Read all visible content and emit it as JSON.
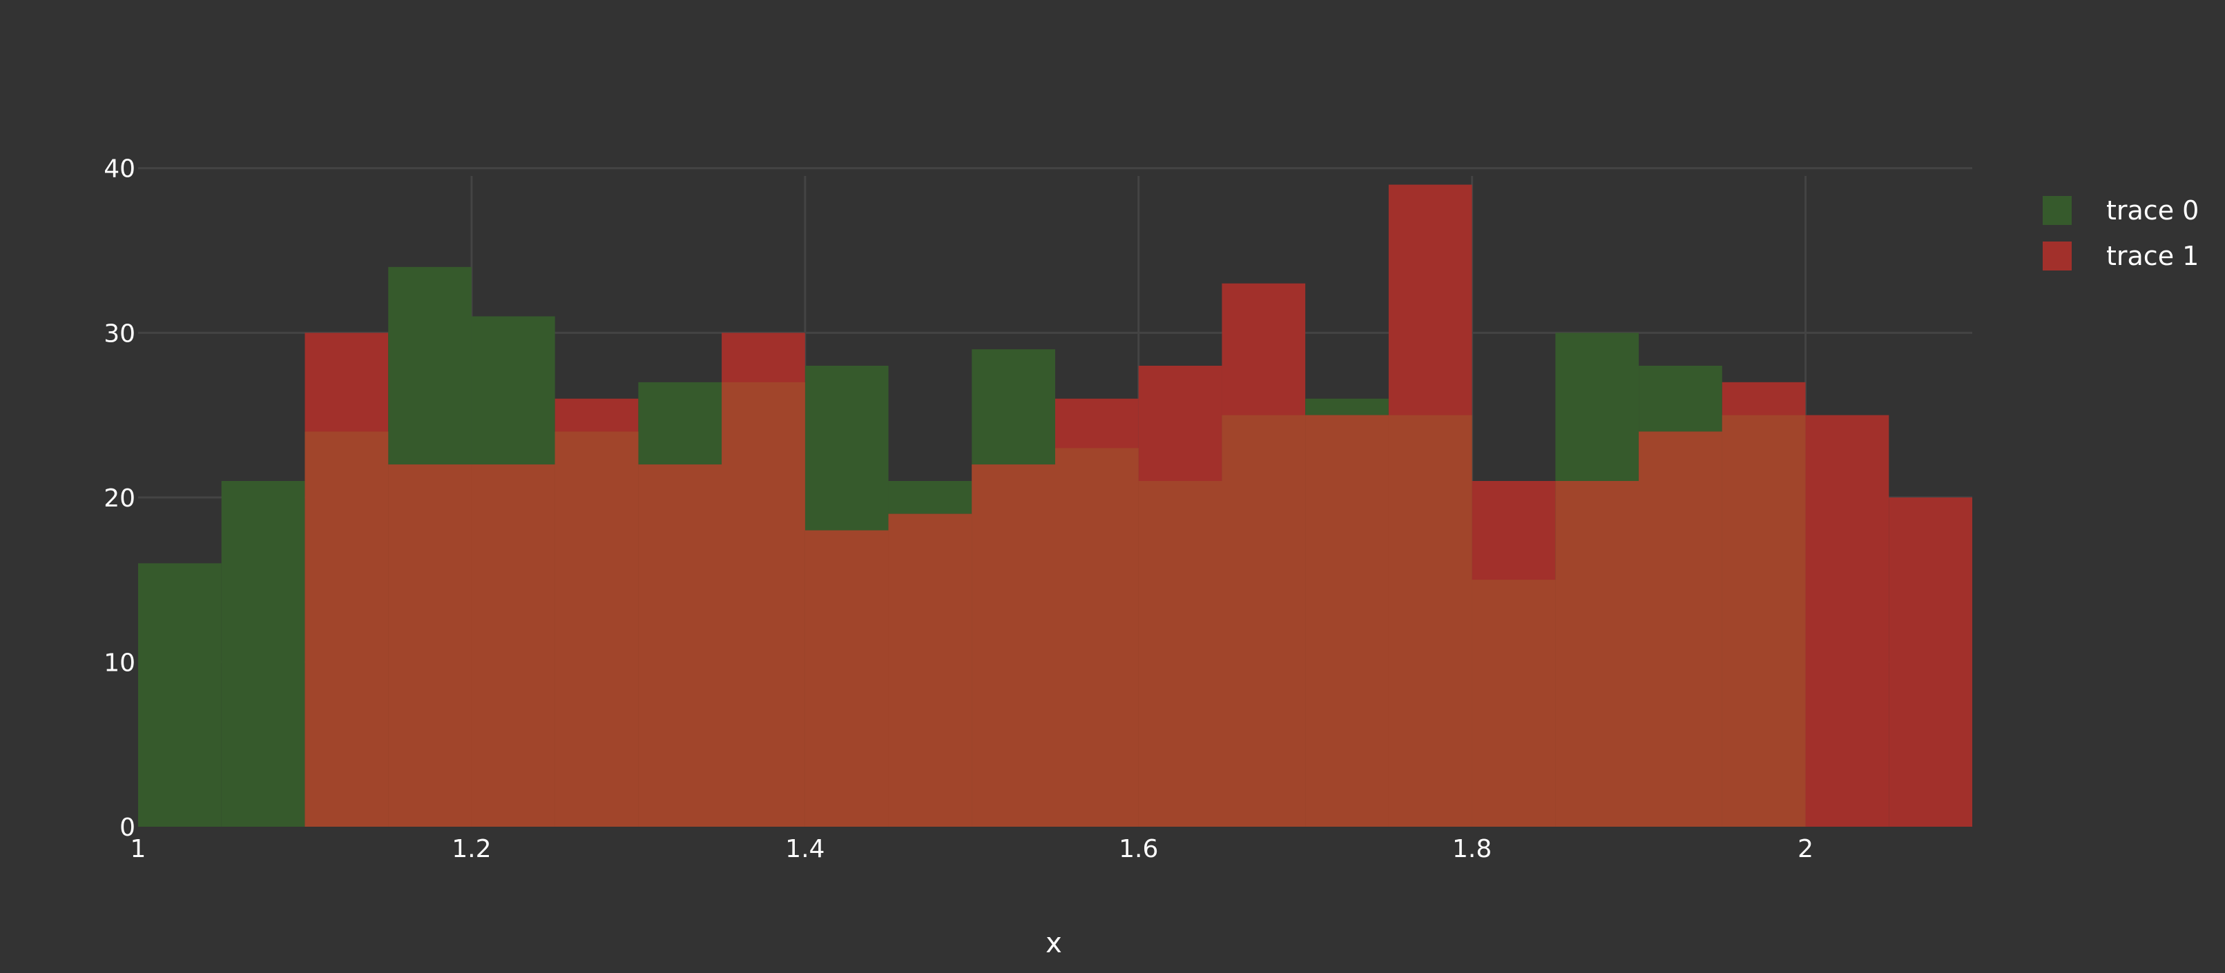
{
  "chart_data": {
    "type": "bar",
    "mode": "overlay-histogram",
    "xlabel": "x",
    "ylabel": "",
    "xlim": [
      1,
      2.1
    ],
    "ylim": [
      0,
      42
    ],
    "grid": true,
    "legend_position": "top-right",
    "x_ticks": [
      {
        "value": 1,
        "label": "1"
      },
      {
        "value": 1.2,
        "label": "1.2"
      },
      {
        "value": 1.4,
        "label": "1.4"
      },
      {
        "value": 1.6,
        "label": "1.6"
      },
      {
        "value": 1.8,
        "label": "1.8"
      },
      {
        "value": 2,
        "label": "2"
      }
    ],
    "y_ticks": [
      {
        "value": 0,
        "label": "0"
      },
      {
        "value": 10,
        "label": "10"
      },
      {
        "value": 20,
        "label": "20"
      },
      {
        "value": 30,
        "label": "30"
      },
      {
        "value": 40,
        "label": "40"
      }
    ],
    "bin_edges": [
      1.0,
      1.05,
      1.1,
      1.15,
      1.2,
      1.25,
      1.3,
      1.35,
      1.4,
      1.45,
      1.5,
      1.55,
      1.6,
      1.65,
      1.7,
      1.75,
      1.8,
      1.85,
      1.9,
      1.95,
      2.0,
      2.05,
      2.1
    ],
    "series": [
      {
        "name": "trace 0",
        "color": "#365a2c",
        "values": [
          16,
          21,
          24,
          34,
          31,
          24,
          27,
          27,
          28,
          21,
          29,
          23,
          21,
          25,
          26,
          25,
          15,
          30,
          28,
          25,
          0,
          0
        ]
      },
      {
        "name": "trace 1",
        "color": "#a2302b",
        "values": [
          0,
          0,
          30,
          22,
          22,
          26,
          22,
          30,
          18,
          19,
          22,
          26,
          28,
          33,
          25,
          39,
          21,
          21,
          24,
          27,
          25,
          20
        ]
      }
    ],
    "overlap_color": "#a1452b"
  }
}
